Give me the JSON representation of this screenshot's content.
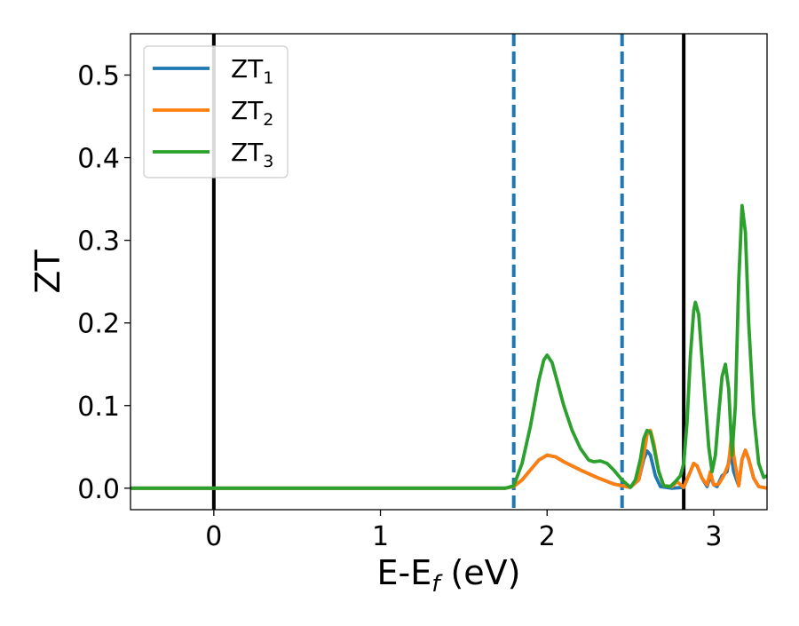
{
  "chart_data": {
    "type": "line",
    "xlabel": "E-E",
    "xlabel_sub": "f",
    "xlabel_unit": " (eV)",
    "ylabel": "ZT",
    "xlim": [
      -0.5,
      3.32
    ],
    "ylim": [
      -0.026,
      0.55
    ],
    "xticks": [
      0,
      1,
      2,
      3
    ],
    "xtick_labels": [
      "0",
      "1",
      "2",
      "3"
    ],
    "yticks": [
      0.0,
      0.1,
      0.2,
      0.3,
      0.4,
      0.5
    ],
    "ytick_labels": [
      "0.0",
      "0.1",
      "0.2",
      "0.3",
      "0.4",
      "0.5"
    ],
    "grid": false,
    "legend_position": "top-left",
    "vertical_lines": [
      {
        "x": 0.0,
        "style": "solid",
        "color": "#000000"
      },
      {
        "x": 1.8,
        "style": "dashed",
        "color": "#1f77b4"
      },
      {
        "x": 2.45,
        "style": "dashed",
        "color": "#1f77b4"
      },
      {
        "x": 2.82,
        "style": "solid",
        "color": "#000000"
      }
    ],
    "series": [
      {
        "name": "ZT",
        "subscript": "1",
        "color": "#1f77b4",
        "points": [
          [
            -0.5,
            0
          ],
          [
            1.75,
            0
          ],
          [
            1.8,
            0.002
          ],
          [
            1.85,
            0.01
          ],
          [
            1.9,
            0.022
          ],
          [
            1.95,
            0.034
          ],
          [
            2.0,
            0.04
          ],
          [
            2.05,
            0.038
          ],
          [
            2.1,
            0.032
          ],
          [
            2.2,
            0.022
          ],
          [
            2.3,
            0.013
          ],
          [
            2.4,
            0.005
          ],
          [
            2.5,
            0.001
          ],
          [
            2.55,
            0.01
          ],
          [
            2.58,
            0.035
          ],
          [
            2.6,
            0.045
          ],
          [
            2.62,
            0.04
          ],
          [
            2.65,
            0.015
          ],
          [
            2.68,
            0.002
          ],
          [
            2.75,
            0
          ],
          [
            2.82,
            0.001
          ],
          [
            2.86,
            0.02
          ],
          [
            2.88,
            0.03
          ],
          [
            2.9,
            0.027
          ],
          [
            2.93,
            0.012
          ],
          [
            2.96,
            0.002
          ],
          [
            2.98,
            0.015
          ],
          [
            3.0,
            0.004
          ],
          [
            3.02,
            0.002
          ],
          [
            3.05,
            0.015
          ],
          [
            3.08,
            0.02
          ],
          [
            3.1,
            0.045
          ],
          [
            3.12,
            0.02
          ],
          [
            3.15,
            0.003
          ],
          [
            3.17,
            0.035
          ],
          [
            3.19,
            0.046
          ],
          [
            3.21,
            0.035
          ],
          [
            3.24,
            0.012
          ],
          [
            3.27,
            0.002
          ],
          [
            3.32,
            0.0
          ]
        ]
      },
      {
        "name": "ZT",
        "subscript": "2",
        "color": "#ff7f0e",
        "points": [
          [
            -0.5,
            0
          ],
          [
            1.75,
            0
          ],
          [
            1.8,
            0.002
          ],
          [
            1.85,
            0.01
          ],
          [
            1.9,
            0.022
          ],
          [
            1.95,
            0.034
          ],
          [
            2.0,
            0.04
          ],
          [
            2.05,
            0.038
          ],
          [
            2.1,
            0.032
          ],
          [
            2.2,
            0.022
          ],
          [
            2.3,
            0.013
          ],
          [
            2.4,
            0.005
          ],
          [
            2.5,
            0.001
          ],
          [
            2.55,
            0.01
          ],
          [
            2.58,
            0.04
          ],
          [
            2.6,
            0.065
          ],
          [
            2.62,
            0.07
          ],
          [
            2.64,
            0.055
          ],
          [
            2.67,
            0.02
          ],
          [
            2.7,
            0.003
          ],
          [
            2.75,
            0.002
          ],
          [
            2.78,
            0.008
          ],
          [
            2.82,
            0.001
          ],
          [
            2.86,
            0.02
          ],
          [
            2.88,
            0.03
          ],
          [
            2.9,
            0.027
          ],
          [
            2.93,
            0.012
          ],
          [
            2.96,
            0.004
          ],
          [
            2.98,
            0.02
          ],
          [
            3.0,
            0.004
          ],
          [
            3.03,
            0.005
          ],
          [
            3.06,
            0.015
          ],
          [
            3.09,
            0.03
          ],
          [
            3.11,
            0.07
          ],
          [
            3.12,
            0.04
          ],
          [
            3.15,
            0.003
          ],
          [
            3.17,
            0.035
          ],
          [
            3.19,
            0.046
          ],
          [
            3.21,
            0.035
          ],
          [
            3.24,
            0.012
          ],
          [
            3.27,
            0.002
          ],
          [
            3.32,
            0.0
          ]
        ]
      },
      {
        "name": "ZT",
        "subscript": "3",
        "color": "#2ca02c",
        "points": [
          [
            -0.5,
            0
          ],
          [
            1.75,
            0
          ],
          [
            1.8,
            0.003
          ],
          [
            1.85,
            0.03
          ],
          [
            1.9,
            0.075
          ],
          [
            1.95,
            0.13
          ],
          [
            1.98,
            0.155
          ],
          [
            2.0,
            0.161
          ],
          [
            2.03,
            0.152
          ],
          [
            2.06,
            0.13
          ],
          [
            2.1,
            0.1
          ],
          [
            2.15,
            0.07
          ],
          [
            2.2,
            0.048
          ],
          [
            2.25,
            0.034
          ],
          [
            2.28,
            0.032
          ],
          [
            2.32,
            0.033
          ],
          [
            2.36,
            0.03
          ],
          [
            2.4,
            0.022
          ],
          [
            2.45,
            0.01
          ],
          [
            2.5,
            0.001
          ],
          [
            2.53,
            0.01
          ],
          [
            2.56,
            0.035
          ],
          [
            2.58,
            0.06
          ],
          [
            2.6,
            0.07
          ],
          [
            2.62,
            0.068
          ],
          [
            2.64,
            0.05
          ],
          [
            2.67,
            0.02
          ],
          [
            2.7,
            0.003
          ],
          [
            2.74,
            0.002
          ],
          [
            2.77,
            0.008
          ],
          [
            2.8,
            0.015
          ],
          [
            2.82,
            0.03
          ],
          [
            2.84,
            0.08
          ],
          [
            2.86,
            0.16
          ],
          [
            2.88,
            0.215
          ],
          [
            2.89,
            0.225
          ],
          [
            2.91,
            0.21
          ],
          [
            2.94,
            0.13
          ],
          [
            2.97,
            0.05
          ],
          [
            2.99,
            0.02
          ],
          [
            3.01,
            0.04
          ],
          [
            3.03,
            0.09
          ],
          [
            3.05,
            0.135
          ],
          [
            3.07,
            0.15
          ],
          [
            3.09,
            0.12
          ],
          [
            3.11,
            0.04
          ],
          [
            3.13,
            0.1
          ],
          [
            3.15,
            0.25
          ],
          [
            3.17,
            0.342
          ],
          [
            3.19,
            0.31
          ],
          [
            3.21,
            0.2
          ],
          [
            3.24,
            0.09
          ],
          [
            3.27,
            0.03
          ],
          [
            3.3,
            0.013
          ],
          [
            3.32,
            0.015
          ]
        ]
      }
    ]
  }
}
